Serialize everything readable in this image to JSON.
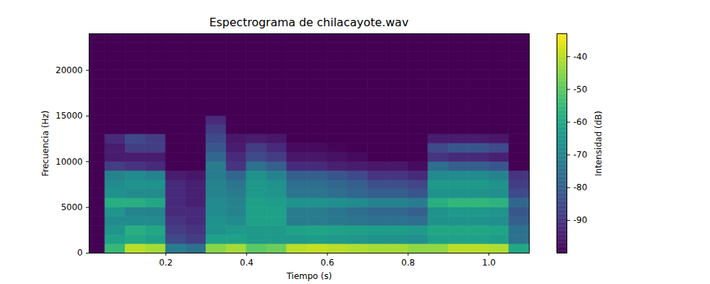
{
  "chart_data": {
    "type": "heatmap",
    "title": "Espectrograma de chilacayote.wav",
    "x_label": "Tiempo (s)",
    "y_label": "Frecuencia (Hz)",
    "xlim": [
      0.01,
      1.1
    ],
    "xticks": [
      0.2,
      0.4,
      0.6,
      0.8,
      {
        "value": 1,
        "label": "1.0"
      }
    ],
    "ylim": [
      0,
      24000
    ],
    "yticks": [
      0,
      5000,
      10000,
      15000,
      20000
    ],
    "color": "viridis",
    "x_bins": [
      0,
      0.05,
      0.1,
      0.15,
      0.2,
      0.25,
      0.3,
      0.35,
      0.4,
      0.45,
      0.5,
      0.55,
      0.6,
      0.65,
      0.7,
      0.75,
      0.8,
      0.85,
      0.9,
      0.95,
      1,
      1.05,
      1.1
    ],
    "y_bins": [
      0,
      1000,
      2000,
      3000,
      4000,
      5000,
      6000,
      7000,
      8000,
      9000,
      10000,
      11000,
      12000,
      13000,
      14000,
      15000,
      16000,
      17000,
      18000,
      19000,
      20000,
      21000,
      22000,
      23000,
      24000
    ],
    "values": [
      [
        -100,
        -55,
        -40,
        -42,
        -72,
        -75,
        -45,
        -42,
        -50,
        -48,
        -40,
        -39,
        -40,
        -41,
        -42,
        -42,
        -44,
        -44,
        -40,
        -40,
        -41,
        -60
      ],
      [
        -100,
        -62,
        -60,
        -62,
        -85,
        -88,
        -62,
        -62,
        -64,
        -64,
        -64,
        -63,
        -64,
        -65,
        -66,
        -66,
        -67,
        -62,
        -62,
        -62,
        -63,
        -75
      ],
      [
        -100,
        -65,
        -58,
        -60,
        -88,
        -90,
        -66,
        -64,
        -64,
        -64,
        -62,
        -61,
        -62,
        -62,
        -63,
        -63,
        -64,
        -60,
        -60,
        -60,
        -61,
        -75
      ],
      [
        -100,
        -68,
        -68,
        -68,
        -90,
        -92,
        -66,
        -68,
        -62,
        -62,
        -72,
        -72,
        -73,
        -74,
        -75,
        -75,
        -76,
        -66,
        -66,
        -66,
        -67,
        -80
      ],
      [
        -100,
        -65,
        -70,
        -70,
        -92,
        -92,
        -68,
        -70,
        -62,
        -62,
        -72,
        -72,
        -74,
        -76,
        -78,
        -78,
        -80,
        -66,
        -64,
        -64,
        -65,
        -82
      ],
      [
        -100,
        -58,
        -58,
        -60,
        -92,
        -94,
        -68,
        -70,
        -62,
        -63,
        -66,
        -66,
        -67,
        -68,
        -70,
        -70,
        -72,
        -58,
        -56,
        -56,
        -57,
        -78
      ],
      [
        -100,
        -66,
        -68,
        -68,
        -92,
        -94,
        -70,
        -72,
        -64,
        -65,
        -74,
        -74,
        -76,
        -78,
        -80,
        -80,
        -82,
        -66,
        -66,
        -66,
        -67,
        -85
      ],
      [
        -100,
        -68,
        -66,
        -66,
        -92,
        -94,
        -70,
        -74,
        -64,
        -66,
        -76,
        -76,
        -78,
        -80,
        -84,
        -84,
        -86,
        -64,
        -64,
        -64,
        -66,
        -88
      ],
      [
        -100,
        -70,
        -68,
        -70,
        -95,
        -96,
        -72,
        -78,
        -66,
        -70,
        -80,
        -80,
        -82,
        -85,
        -90,
        -90,
        -92,
        -68,
        -68,
        -68,
        -70,
        -90
      ],
      [
        -100,
        -88,
        -90,
        -92,
        -100,
        -100,
        -72,
        -90,
        -75,
        -80,
        -92,
        -92,
        -94,
        -95,
        -96,
        -96,
        -98,
        -76,
        -80,
        -80,
        -82,
        -100
      ],
      [
        -100,
        -95,
        -95,
        -95,
        -100,
        -100,
        -78,
        -92,
        -85,
        -88,
        -96,
        -96,
        -97,
        -98,
        -100,
        -100,
        -100,
        -90,
        -92,
        -92,
        -94,
        -100
      ],
      [
        -100,
        -95,
        -88,
        -88,
        -100,
        -100,
        -82,
        -95,
        -88,
        -92,
        -98,
        -98,
        -99,
        -100,
        -100,
        -100,
        -100,
        -85,
        -82,
        -82,
        -85,
        -100
      ],
      [
        -100,
        -92,
        -85,
        -88,
        -100,
        -100,
        -85,
        -96,
        -95,
        -96,
        -100,
        -100,
        -100,
        -100,
        -100,
        -100,
        -100,
        -95,
        -95,
        -95,
        -96,
        -100
      ],
      [
        -100,
        -100,
        -100,
        -100,
        -100,
        -100,
        -88,
        -100,
        -100,
        -100,
        -100,
        -100,
        -100,
        -100,
        -100,
        -100,
        -100,
        -100,
        -100,
        -100,
        -100,
        -100
      ],
      [
        -100,
        -100,
        -100,
        -100,
        -100,
        -100,
        -92,
        -100,
        -100,
        -100,
        -100,
        -100,
        -100,
        -100,
        -100,
        -100,
        -100,
        -100,
        -100,
        -100,
        -100,
        -100
      ],
      [
        -100,
        -100,
        -100,
        -100,
        -100,
        -100,
        -100,
        -100,
        -100,
        -100,
        -100,
        -100,
        -100,
        -100,
        -100,
        -100,
        -100,
        -100,
        -100,
        -100,
        -100,
        -100
      ],
      [
        -100,
        -100,
        -100,
        -100,
        -100,
        -100,
        -100,
        -100,
        -100,
        -100,
        -100,
        -100,
        -100,
        -100,
        -100,
        -100,
        -100,
        -100,
        -100,
        -100,
        -100,
        -100
      ],
      [
        -100,
        -100,
        -100,
        -100,
        -100,
        -100,
        -100,
        -100,
        -100,
        -100,
        -100,
        -100,
        -100,
        -100,
        -100,
        -100,
        -100,
        -100,
        -100,
        -100,
        -100,
        -100
      ],
      [
        -100,
        -100,
        -100,
        -100,
        -100,
        -100,
        -100,
        -100,
        -100,
        -100,
        -100,
        -100,
        -100,
        -100,
        -100,
        -100,
        -100,
        -100,
        -100,
        -100,
        -100,
        -100
      ],
      [
        -100,
        -100,
        -100,
        -100,
        -100,
        -100,
        -100,
        -100,
        -100,
        -100,
        -100,
        -100,
        -100,
        -100,
        -100,
        -100,
        -100,
        -100,
        -100,
        -100,
        -100,
        -100
      ],
      [
        -100,
        -100,
        -100,
        -100,
        -100,
        -100,
        -100,
        -100,
        -100,
        -100,
        -100,
        -100,
        -100,
        -100,
        -100,
        -100,
        -100,
        -100,
        -100,
        -100,
        -100,
        -100
      ],
      [
        -100,
        -100,
        -100,
        -100,
        -100,
        -100,
        -100,
        -100,
        -100,
        -100,
        -100,
        -100,
        -100,
        -100,
        -100,
        -100,
        -100,
        -100,
        -100,
        -100,
        -100,
        -100
      ],
      [
        -100,
        -100,
        -100,
        -100,
        -100,
        -100,
        -100,
        -100,
        -100,
        -100,
        -100,
        -100,
        -100,
        -100,
        -100,
        -100,
        -100,
        -100,
        -100,
        -100,
        -100,
        -100
      ],
      [
        -100,
        -100,
        -100,
        -100,
        -100,
        -100,
        -100,
        -100,
        -100,
        -100,
        -100,
        -100,
        -100,
        -100,
        -100,
        -100,
        -100,
        -100,
        -100,
        -100,
        -100,
        -100
      ]
    ],
    "colorbar": {
      "label": "Intensidad (dB)",
      "range": [
        -100,
        -33
      ],
      "ticks": [
        -90,
        -80,
        -70,
        -60,
        -50,
        -40
      ]
    }
  }
}
